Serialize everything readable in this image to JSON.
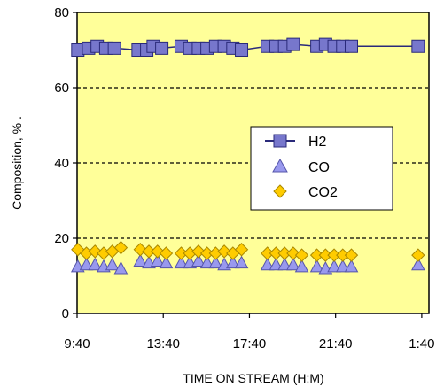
{
  "chart_data": {
    "type": "scatter",
    "title": "",
    "xlabel": "TIME ON STREAM (H:M)",
    "ylabel": "Composition, % .",
    "xlim": [
      9.6667,
      26.0
    ],
    "ylim": [
      0,
      80
    ],
    "x_ticks": [
      {
        "value": 9.6667,
        "label": "9:40"
      },
      {
        "value": 13.6667,
        "label": "13:40"
      },
      {
        "value": 17.6667,
        "label": "17:40"
      },
      {
        "value": 21.6667,
        "label": "21:40"
      },
      {
        "value": 25.6667,
        "label": "1:40"
      }
    ],
    "y_ticks": [
      0,
      20,
      40,
      60,
      80
    ],
    "gridlines": [
      20,
      40,
      60
    ],
    "grid": "horizontal dashed",
    "background": "#ffff99",
    "legend": {
      "position": "center-right"
    },
    "series": [
      {
        "name": "H2",
        "marker": "square",
        "line": true,
        "color": "#7777cc",
        "x": [
          9.7,
          10.2,
          10.6,
          11.0,
          11.4,
          12.5,
          12.9,
          13.2,
          13.6,
          14.5,
          14.9,
          15.3,
          15.7,
          16.1,
          16.5,
          16.9,
          17.3,
          18.5,
          18.9,
          19.3,
          19.7,
          20.8,
          21.2,
          21.6,
          22.0,
          22.4,
          25.5
        ],
        "y": [
          70,
          70.5,
          71,
          70.5,
          70.5,
          70,
          70,
          71,
          70.5,
          71,
          70.5,
          70.5,
          70.5,
          71,
          71,
          70.5,
          70,
          71,
          71,
          71,
          71.5,
          71,
          71.5,
          71,
          71,
          71,
          71
        ]
      },
      {
        "name": "CO",
        "marker": "triangle",
        "line": false,
        "color": "#9999ee",
        "x": [
          9.7,
          10.1,
          10.5,
          10.9,
          11.3,
          11.7,
          12.6,
          13.0,
          13.4,
          13.8,
          14.5,
          14.9,
          15.3,
          15.7,
          16.1,
          16.5,
          16.9,
          17.3,
          18.5,
          18.9,
          19.3,
          19.7,
          20.1,
          20.8,
          21.2,
          21.6,
          22.0,
          22.4,
          25.5
        ],
        "y": [
          12.5,
          13,
          13,
          12.5,
          13,
          12,
          14,
          13.5,
          14,
          13.5,
          13.5,
          13.5,
          14,
          13.5,
          13.5,
          13,
          13.5,
          13.5,
          13,
          13,
          13,
          13,
          12.5,
          12.5,
          12,
          12.5,
          12.5,
          12.5,
          13
        ]
      },
      {
        "name": "CO2",
        "marker": "diamond",
        "line": false,
        "color": "#ffcc00",
        "x": [
          9.7,
          10.1,
          10.5,
          10.9,
          11.3,
          11.7,
          12.6,
          13.0,
          13.4,
          13.8,
          14.5,
          14.9,
          15.3,
          15.7,
          16.1,
          16.5,
          16.9,
          17.3,
          18.5,
          18.9,
          19.3,
          19.7,
          20.1,
          20.8,
          21.2,
          21.6,
          22.0,
          22.4,
          25.5
        ],
        "y": [
          17,
          16,
          16.5,
          16,
          16.5,
          17.5,
          17,
          16.5,
          16.5,
          16,
          16,
          16,
          16.5,
          16,
          16,
          16.5,
          16,
          17,
          16,
          16,
          16,
          16,
          15.5,
          15.5,
          15.5,
          15.5,
          15.5,
          15.5,
          15.5
        ]
      }
    ]
  }
}
